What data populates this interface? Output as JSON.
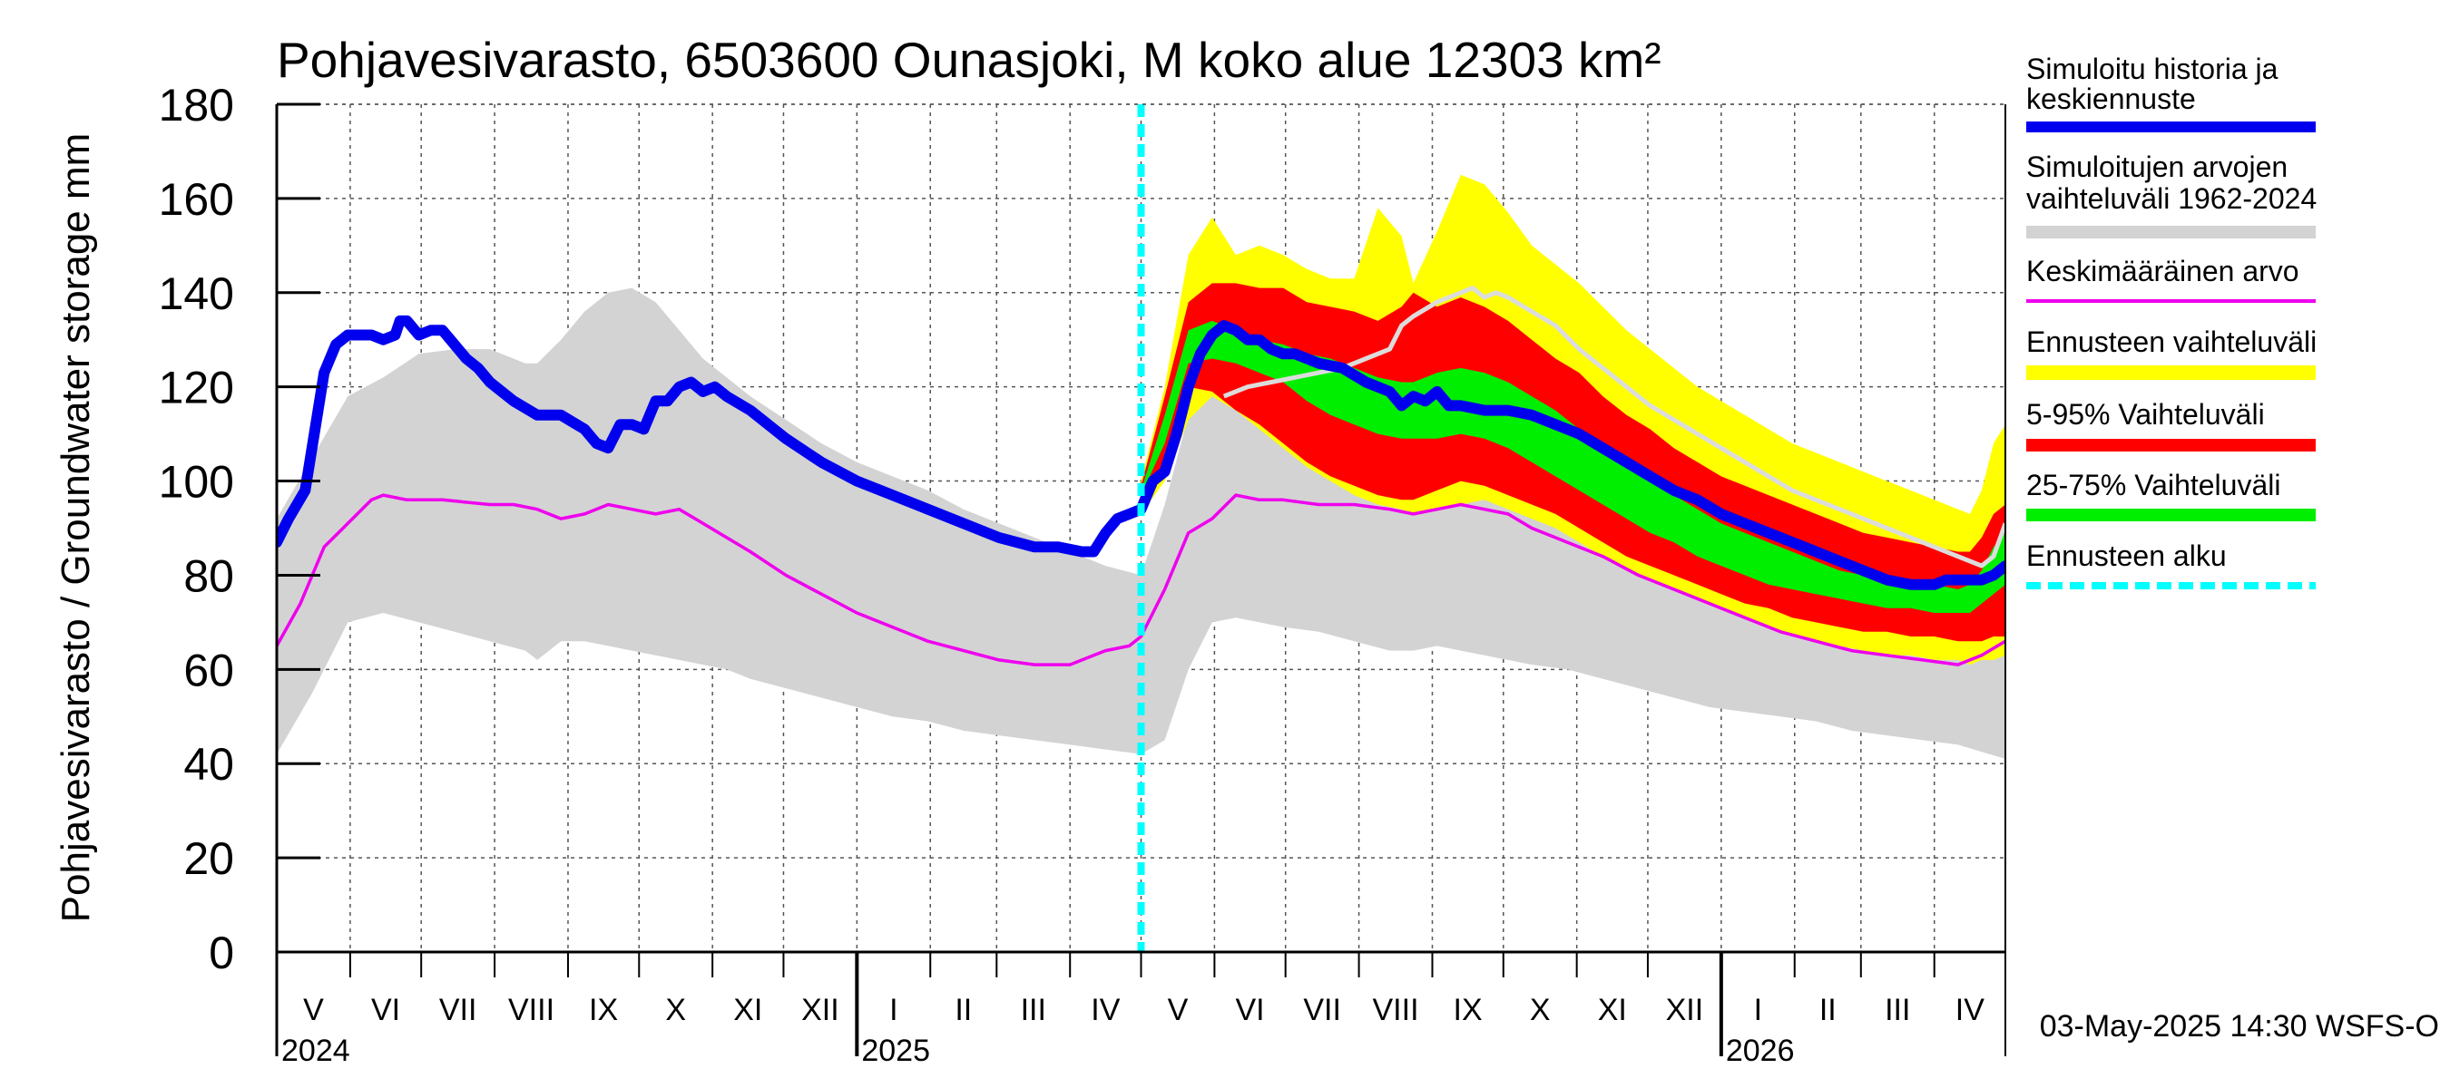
{
  "chart_data": {
    "type": "area",
    "title": "Pohjavesivarasto, 6503600 Ounasjoki, M koko alue 12303 km²",
    "ylabel": "Pohjavesivarasto / Groundwater storage   mm",
    "ylim": [
      0,
      180
    ],
    "yticks": [
      0,
      20,
      40,
      60,
      80,
      100,
      120,
      140,
      160,
      180
    ],
    "x_range_days": [
      0,
      730
    ],
    "forecast_start_day": 365,
    "months": [
      {
        "label": "V",
        "start": 0,
        "end": 31
      },
      {
        "label": "VI",
        "start": 31,
        "end": 61
      },
      {
        "label": "VII",
        "start": 61,
        "end": 92
      },
      {
        "label": "VIII",
        "start": 92,
        "end": 123
      },
      {
        "label": "IX",
        "start": 123,
        "end": 153
      },
      {
        "label": "X",
        "start": 153,
        "end": 184
      },
      {
        "label": "XI",
        "start": 184,
        "end": 214
      },
      {
        "label": "XII",
        "start": 214,
        "end": 245
      },
      {
        "label": "I",
        "start": 245,
        "end": 276
      },
      {
        "label": "II",
        "start": 276,
        "end": 304
      },
      {
        "label": "III",
        "start": 304,
        "end": 335
      },
      {
        "label": "IV",
        "start": 335,
        "end": 365
      },
      {
        "label": "V",
        "start": 365,
        "end": 396
      },
      {
        "label": "VI",
        "start": 396,
        "end": 426
      },
      {
        "label": "VII",
        "start": 426,
        "end": 457
      },
      {
        "label": "VIII",
        "start": 457,
        "end": 488
      },
      {
        "label": "IX",
        "start": 488,
        "end": 518
      },
      {
        "label": "X",
        "start": 518,
        "end": 549
      },
      {
        "label": "XI",
        "start": 549,
        "end": 579
      },
      {
        "label": "XII",
        "start": 579,
        "end": 610
      },
      {
        "label": "I",
        "start": 610,
        "end": 641
      },
      {
        "label": "II",
        "start": 641,
        "end": 669
      },
      {
        "label": "III",
        "start": 669,
        "end": 700
      },
      {
        "label": "IV",
        "start": 700,
        "end": 730
      }
    ],
    "years": [
      {
        "label": "2024",
        "day": 0
      },
      {
        "label": "2025",
        "day": 245
      },
      {
        "label": "2026",
        "day": 610
      }
    ],
    "legend": [
      {
        "label": "Simuloitu historia ja keskiennuste",
        "color": "#0000ee",
        "kind": "line"
      },
      {
        "label": "Simuloitujen arvojen vaihteluväli 1962-2024",
        "color": "#d3d3d3",
        "kind": "band"
      },
      {
        "label": "Keskimääräinen arvo",
        "color": "#ee00ee",
        "kind": "thin"
      },
      {
        "label": "Ennusteen vaihteluväli",
        "color": "#ffff00",
        "kind": "band"
      },
      {
        "label": "5-95% Vaihteluväli",
        "color": "#ff0000",
        "kind": "band"
      },
      {
        "label": "25-75% Vaihteluväli",
        "color": "#00ee00",
        "kind": "band"
      },
      {
        "label": "Ennusteen alku",
        "color": "#00ffff",
        "kind": "dash"
      }
    ],
    "series": {
      "hist_range": {
        "x": [
          0,
          15,
          30,
          45,
          60,
          75,
          90,
          105,
          110,
          120,
          130,
          140,
          150,
          160,
          170,
          180,
          190,
          200,
          215,
          230,
          245,
          260,
          275,
          290,
          305,
          320,
          335,
          350,
          365,
          375,
          385,
          395,
          405,
          415,
          425,
          440,
          455,
          470,
          480,
          490,
          500,
          510,
          520,
          530,
          545,
          560,
          575,
          590,
          605,
          620,
          635,
          650,
          665,
          680,
          695,
          710,
          730
        ],
        "lower": [
          42,
          55,
          70,
          72,
          70,
          68,
          66,
          64,
          62,
          66,
          66,
          65,
          64,
          63,
          62,
          61,
          60,
          58,
          56,
          54,
          52,
          50,
          49,
          47,
          46,
          45,
          44,
          43,
          42,
          45,
          60,
          70,
          71,
          70,
          69,
          68,
          66,
          64,
          64,
          65,
          64,
          63,
          62,
          61,
          60,
          58,
          56,
          54,
          52,
          51,
          50,
          49,
          47,
          46,
          45,
          44,
          41
        ],
        "upper": [
          92,
          105,
          118,
          122,
          127,
          128,
          128,
          125,
          125,
          130,
          136,
          140,
          141,
          138,
          132,
          126,
          122,
          118,
          113,
          108,
          104,
          101,
          98,
          94,
          91,
          88,
          85,
          82,
          80,
          95,
          114,
          122,
          124,
          124,
          125,
          126,
          128,
          130,
          132,
          134,
          136,
          137,
          136,
          132,
          126,
          120,
          114,
          109,
          104,
          100,
          97,
          94,
          91,
          89,
          87,
          84,
          81
        ]
      },
      "mean": {
        "x": [
          0,
          10,
          20,
          30,
          40,
          45,
          55,
          70,
          90,
          100,
          110,
          120,
          130,
          140,
          150,
          160,
          170,
          180,
          190,
          200,
          215,
          230,
          245,
          260,
          275,
          290,
          305,
          320,
          335,
          345,
          350,
          360,
          365,
          375,
          385,
          395,
          405,
          415,
          425,
          440,
          455,
          470,
          480,
          490,
          500,
          510,
          520,
          530,
          545,
          560,
          575,
          590,
          605,
          620,
          635,
          650,
          665,
          680,
          695,
          710,
          720,
          730
        ],
        "y": [
          65,
          74,
          86,
          91,
          96,
          97,
          96,
          96,
          95,
          95,
          94,
          92,
          93,
          95,
          94,
          93,
          94,
          91,
          88,
          85,
          80,
          76,
          72,
          69,
          66,
          64,
          62,
          61,
          61,
          63,
          64,
          65,
          67,
          77,
          89,
          92,
          97,
          96,
          96,
          95,
          95,
          94,
          93,
          94,
          95,
          94,
          93,
          90,
          87,
          84,
          80,
          77,
          74,
          71,
          68,
          66,
          64,
          63,
          62,
          61,
          63,
          66
        ]
      },
      "main": {
        "x": [
          0,
          5,
          12,
          20,
          25,
          30,
          35,
          40,
          45,
          50,
          52,
          55,
          60,
          65,
          70,
          80,
          85,
          90,
          100,
          110,
          120,
          130,
          135,
          140,
          145,
          150,
          155,
          160,
          165,
          170,
          175,
          180,
          185,
          190,
          200,
          215,
          230,
          245,
          260,
          275,
          290,
          305,
          320,
          330,
          340,
          345,
          350,
          355,
          360,
          365,
          370,
          375,
          380,
          385,
          390,
          395,
          400,
          405,
          410,
          415,
          420,
          425,
          430,
          440,
          450,
          460,
          470,
          475,
          480,
          485,
          490,
          495,
          500,
          510,
          520,
          530,
          540,
          550,
          560,
          570,
          580,
          590,
          600,
          610,
          620,
          630,
          640,
          650,
          660,
          670,
          680,
          690,
          700,
          705,
          710,
          720,
          725,
          730
        ],
        "y": [
          87,
          92,
          98,
          123,
          129,
          131,
          131,
          131,
          130,
          131,
          134,
          134,
          131,
          132,
          132,
          126,
          124,
          121,
          117,
          114,
          114,
          111,
          108,
          107,
          112,
          112,
          111,
          117,
          117,
          120,
          121,
          119,
          120,
          118,
          115,
          109,
          104,
          100,
          97,
          94,
          91,
          88,
          86,
          86,
          85,
          85,
          89,
          92,
          93,
          94,
          100,
          102,
          110,
          120,
          127,
          131,
          133,
          132,
          130,
          130,
          128,
          127,
          127,
          125,
          124,
          121,
          119,
          116,
          118,
          117,
          119,
          116,
          116,
          115,
          115,
          114,
          112,
          110,
          107,
          104,
          101,
          98,
          96,
          93,
          91,
          89,
          87,
          85,
          83,
          81,
          79,
          78,
          78,
          79,
          79,
          79,
          80,
          82
        ]
      },
      "sim_history": {
        "x": [
          400,
          410,
          420,
          430,
          440,
          450,
          460,
          470,
          475,
          480,
          490,
          500,
          505,
          510,
          515,
          520,
          530,
          540,
          550,
          560,
          570,
          580,
          590,
          600,
          610,
          620,
          630,
          640,
          650,
          660,
          670,
          680,
          690,
          700,
          710,
          720,
          725,
          730
        ],
        "y": [
          118,
          120,
          121,
          122,
          123,
          124,
          126,
          128,
          133,
          135,
          138,
          140,
          141,
          139,
          140,
          139,
          136,
          133,
          128,
          124,
          120,
          116,
          113,
          110,
          107,
          104,
          101,
          98,
          96,
          94,
          92,
          90,
          88,
          86,
          84,
          82,
          84,
          91
        ]
      },
      "fc_x": [
        365,
        375,
        385,
        395,
        405,
        415,
        425,
        435,
        445,
        455,
        465,
        475,
        480,
        490,
        500,
        510,
        520,
        530,
        540,
        550,
        560,
        570,
        580,
        590,
        600,
        610,
        620,
        630,
        640,
        650,
        660,
        670,
        680,
        690,
        700,
        710,
        715,
        720,
        725,
        730
      ],
      "fc_yellow_lower": [
        93,
        100,
        113,
        118,
        115,
        111,
        107,
        103,
        100,
        97,
        95,
        94,
        93,
        94,
        95,
        96,
        94,
        92,
        90,
        87,
        84,
        81,
        79,
        77,
        75,
        73,
        71,
        69,
        67,
        66,
        65,
        64,
        63,
        63,
        62,
        62,
        61,
        62,
        62,
        63
      ],
      "fc_yellow_upper": [
        100,
        120,
        148,
        156,
        148,
        150,
        148,
        145,
        143,
        143,
        158,
        152,
        142,
        153,
        165,
        163,
        157,
        150,
        146,
        142,
        137,
        132,
        128,
        124,
        120,
        117,
        114,
        111,
        108,
        106,
        104,
        102,
        100,
        98,
        96,
        94,
        93,
        98,
        108,
        112
      ],
      "fc_red_lower": [
        96,
        104,
        120,
        119,
        115,
        112,
        108,
        104,
        101,
        99,
        97,
        96,
        96,
        98,
        100,
        99,
        97,
        95,
        93,
        90,
        87,
        84,
        82,
        80,
        78,
        76,
        74,
        73,
        71,
        70,
        69,
        68,
        68,
        67,
        67,
        66,
        66,
        66,
        67,
        67
      ],
      "fc_red_upper": [
        99,
        118,
        138,
        142,
        142,
        141,
        141,
        138,
        137,
        136,
        134,
        137,
        140,
        137,
        139,
        137,
        134,
        130,
        126,
        123,
        118,
        114,
        111,
        107,
        104,
        101,
        99,
        97,
        95,
        93,
        91,
        89,
        88,
        87,
        86,
        85,
        85,
        88,
        93,
        95
      ],
      "fc_green_lower": [
        97,
        108,
        125,
        126,
        125,
        123,
        121,
        117,
        114,
        112,
        110,
        109,
        109,
        109,
        110,
        109,
        107,
        104,
        101,
        98,
        95,
        92,
        89,
        87,
        84,
        82,
        80,
        78,
        77,
        76,
        75,
        74,
        73,
        73,
        72,
        72,
        72,
        74,
        76,
        78
      ],
      "fc_green_upper": [
        98,
        114,
        132,
        134,
        132,
        130,
        129,
        127,
        126,
        124,
        122,
        121,
        121,
        123,
        124,
        123,
        121,
        118,
        115,
        111,
        107,
        103,
        100,
        97,
        94,
        91,
        89,
        87,
        85,
        83,
        81,
        80,
        79,
        78,
        78,
        77,
        78,
        81,
        86,
        89
      ]
    }
  },
  "footer": {
    "timestamp": "03-May-2025 14:30 WSFS-O"
  }
}
